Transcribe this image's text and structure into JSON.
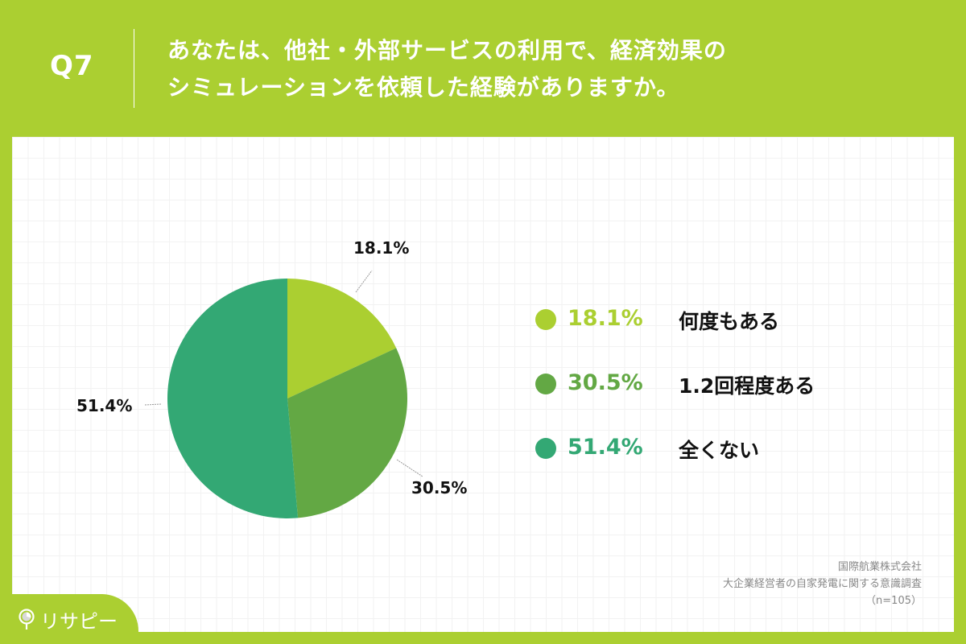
{
  "header": {
    "question_number": "Q7",
    "title_line1": "あなたは、他社・外部サービスの利用で、経済効果の",
    "title_line2": "シミュレーションを依頼した経験がありますか。"
  },
  "colors": {
    "background": "#abcf31",
    "slice_1": "#abcf31",
    "slice_2": "#63a844",
    "slice_3": "#33a874"
  },
  "chart_data": {
    "type": "pie",
    "title": "あなたは、他社・外部サービスの利用で、経済効果のシミュレーションを依頼した経験がありますか。",
    "categories": [
      "何度もある",
      "1.2回程度ある",
      "全くない"
    ],
    "values": [
      18.1,
      30.5,
      51.4
    ],
    "unit": "%",
    "colors": [
      "#abcf31",
      "#63a844",
      "#33a874"
    ],
    "start_angle": "12 o'clock, clockwise",
    "legend_position": "right",
    "n": 105
  },
  "pie_labels": [
    "18.1%",
    "30.5%",
    "51.4%"
  ],
  "legend": [
    {
      "pct": "18.1%",
      "label": "何度もある"
    },
    {
      "pct": "30.5%",
      "label": "1.2回程度ある"
    },
    {
      "pct": "51.4%",
      "label": "全くない"
    }
  ],
  "source": {
    "line1": "国際航業株式会社",
    "line2": "大企業経営者の自家発電に関する意識調査",
    "line3": "（n=105）"
  },
  "logo": {
    "text": "リサピー"
  }
}
